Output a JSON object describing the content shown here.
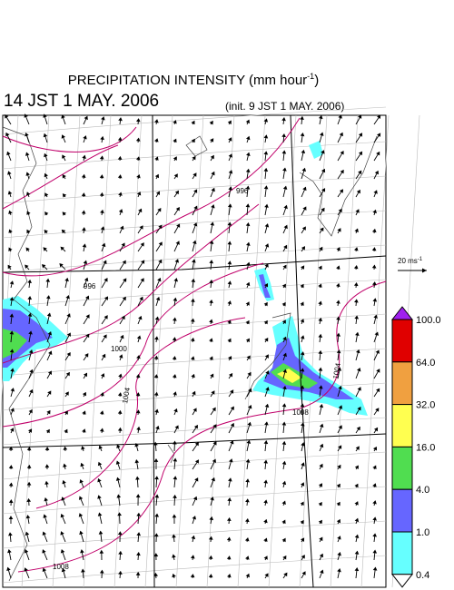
{
  "title": {
    "text": "PRECIPITATION INTENSITY (mm hour",
    "superscript": "-1",
    "close": ")"
  },
  "valid_time": "14 JST 1 MAY. 2006",
  "init_time": "(init. 9 JST 1 MAY. 2006)",
  "vector_key": {
    "text": "20 ms",
    "superscript": "-1"
  },
  "contour_labels": [
    "996",
    "996",
    "1000",
    "1004",
    "1004",
    "1008",
    "1008"
  ],
  "colorbar": {
    "labels": [
      "100.0",
      "64.0",
      "32.0",
      "16.0",
      "4.0",
      "1.0",
      "0.4"
    ],
    "colors": [
      "#a020f0",
      "#e00000",
      "#f0a040",
      "#ffff50",
      "#50dd50",
      "#6666ff",
      "#66ffff",
      "#ffffff"
    ]
  }
}
